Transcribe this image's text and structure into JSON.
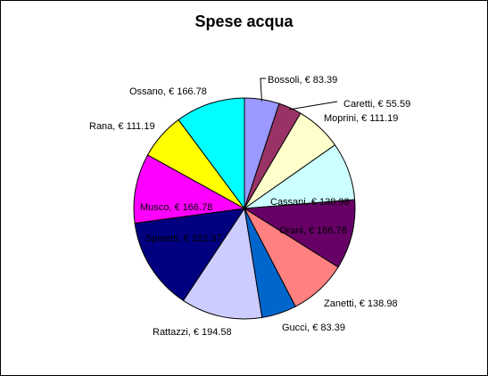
{
  "chart_data": {
    "type": "pie",
    "title": "Spese acqua",
    "slices": [
      {
        "name": "Bossoli",
        "value": 83.39,
        "label": "Bossoli, € 83.39",
        "color": "#9999FF"
      },
      {
        "name": "Caretti",
        "value": 55.59,
        "label": "Caretti, € 55.59",
        "color": "#993366"
      },
      {
        "name": "Moprini",
        "value": 111.19,
        "label": "Moprini, € 111.19",
        "color": "#FFFFCC"
      },
      {
        "name": "Cassani",
        "value": 138.98,
        "label": "Cassani, € 138.98",
        "color": "#CCFFFF"
      },
      {
        "name": "Orani",
        "value": 166.78,
        "label": "Orani, € 166.78",
        "color": "#660066"
      },
      {
        "name": "Zanetti",
        "value": 138.98,
        "label": "Zanetti, € 138.98",
        "color": "#FF8080"
      },
      {
        "name": "Gucci",
        "value": 83.39,
        "label": "Gucci, € 83.39",
        "color": "#0066CC"
      },
      {
        "name": "Rattazzi",
        "value": 194.58,
        "label": "Rattazzi, € 194.58",
        "color": "#CCCCFF"
      },
      {
        "name": "Spinetti",
        "value": 222.37,
        "label": "Spinetti, € 222.37",
        "color": "#000080"
      },
      {
        "name": "Musco",
        "value": 166.78,
        "label": "Musco, € 166.78",
        "color": "#FF00FF"
      },
      {
        "name": "Rana",
        "value": 111.19,
        "label": "Rana, € 111.19",
        "color": "#FFFF00"
      },
      {
        "name": "Ossano",
        "value": 166.78,
        "label": "Ossano, € 166.78",
        "color": "#00FFFF"
      }
    ]
  }
}
